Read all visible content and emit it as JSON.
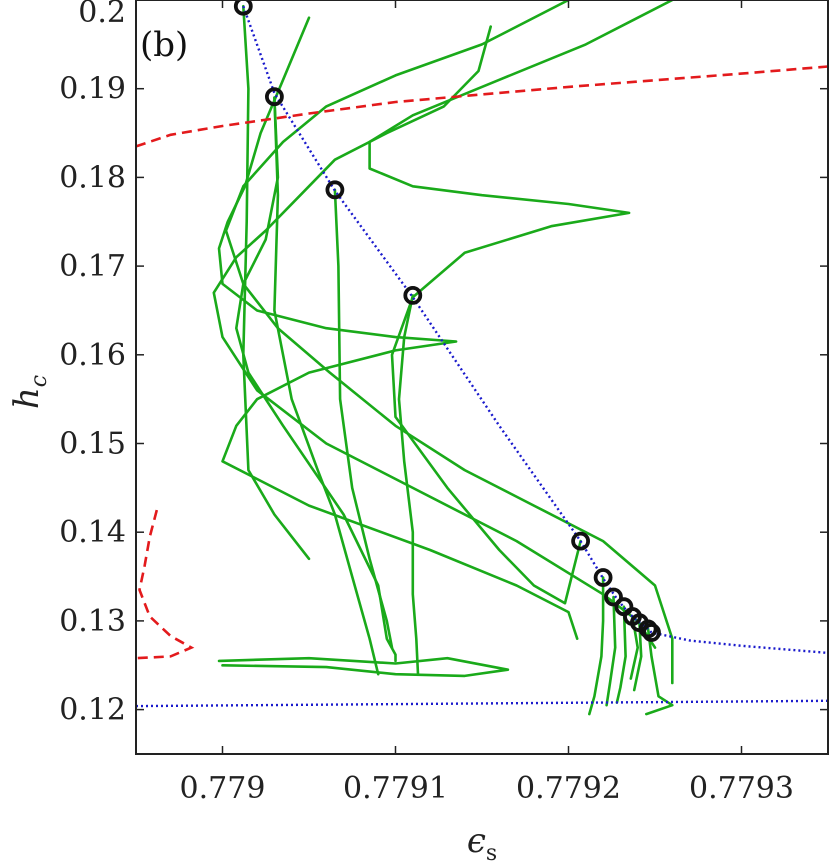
{
  "chart_data": {
    "type": "line",
    "panel_label": "(b)",
    "xlabel_base": "ϵ",
    "xlabel_sub": "s",
    "ylabel_base": "h",
    "ylabel_sub": "c",
    "xlim": [
      0.77895,
      0.77935
    ],
    "ylim": [
      0.115,
      0.2
    ],
    "xticks": [
      0.779,
      0.7791,
      0.7792,
      0.7793
    ],
    "xtick_labels": [
      "0.779",
      "0.7791",
      "0.7792",
      "0.7793"
    ],
    "yticks": [
      0.12,
      0.13,
      0.14,
      0.15,
      0.16,
      0.17,
      0.18,
      0.19,
      0.2
    ],
    "ytick_labels": [
      "0.12",
      "0.13",
      "0.14",
      "0.15",
      "0.16",
      "0.17",
      "0.18",
      "0.19",
      "0.2"
    ],
    "grid": false,
    "colors": {
      "blue_dotted": "#1a1acc",
      "red_dashed": "#e31a1c",
      "green": "#1aaa1a",
      "markers": "#111111"
    },
    "blue_upper": [
      [
        0.779012,
        0.1993
      ],
      [
        0.77903,
        0.1895
      ],
      [
        0.779065,
        0.1785
      ],
      [
        0.77911,
        0.1665
      ],
      [
        0.77916,
        0.152
      ],
      [
        0.779207,
        0.139
      ],
      [
        0.77922,
        0.1348
      ],
      [
        0.779228,
        0.1325
      ],
      [
        0.779233,
        0.1313
      ],
      [
        0.779238,
        0.1303
      ],
      [
        0.779242,
        0.1297
      ],
      [
        0.779246,
        0.1291
      ],
      [
        0.779248,
        0.1287
      ],
      [
        0.77927,
        0.1278
      ],
      [
        0.7793,
        0.1272
      ],
      [
        0.77935,
        0.1264
      ]
    ],
    "blue_lower": [
      [
        0.77895,
        0.1204
      ],
      [
        0.77935,
        0.121
      ]
    ],
    "red_upper": [
      [
        0.77895,
        0.1835
      ],
      [
        0.77897,
        0.1848
      ],
      [
        0.779,
        0.1858
      ],
      [
        0.77905,
        0.1872
      ],
      [
        0.7791,
        0.1885
      ],
      [
        0.7792,
        0.1902
      ],
      [
        0.7793,
        0.1917
      ],
      [
        0.77935,
        0.1925
      ]
    ],
    "red_lower": [
      [
        0.778962,
        0.1425
      ],
      [
        0.778958,
        0.1395
      ],
      [
        0.778955,
        0.1362
      ],
      [
        0.778952,
        0.1335
      ],
      [
        0.778958,
        0.1305
      ],
      [
        0.77897,
        0.1283
      ],
      [
        0.778982,
        0.127
      ],
      [
        0.77897,
        0.126
      ],
      [
        0.77895,
        0.1258
      ]
    ],
    "markers": [
      [
        0.779012,
        0.1993
      ],
      [
        0.77903,
        0.1891
      ],
      [
        0.779065,
        0.1786
      ],
      [
        0.77911,
        0.1667
      ],
      [
        0.779207,
        0.139
      ],
      [
        0.77922,
        0.1349
      ],
      [
        0.779226,
        0.1327
      ],
      [
        0.779232,
        0.1316
      ],
      [
        0.779237,
        0.1305
      ],
      [
        0.779241,
        0.1298
      ],
      [
        0.779246,
        0.1291
      ],
      [
        0.779248,
        0.1287
      ]
    ],
    "green_series": [
      {
        "points": [
          [
            0.779012,
            0.1993
          ],
          [
            0.779015,
            0.19
          ],
          [
            0.779014,
            0.175
          ],
          [
            0.779012,
            0.16
          ],
          [
            0.779015,
            0.147
          ],
          [
            0.77903,
            0.142
          ],
          [
            0.77904,
            0.1395
          ],
          [
            0.77905,
            0.137
          ]
        ]
      },
      {
        "points": [
          [
            0.77903,
            0.189
          ],
          [
            0.779032,
            0.18
          ],
          [
            0.779025,
            0.173
          ],
          [
            0.779012,
            0.168
          ],
          [
            0.779008,
            0.163
          ],
          [
            0.779015,
            0.158
          ],
          [
            0.779035,
            0.152
          ],
          [
            0.77907,
            0.142
          ],
          [
            0.77909,
            0.134
          ],
          [
            0.779095,
            0.128
          ],
          [
            0.7791,
            0.1262
          ],
          [
            0.7791,
            0.1255
          ]
        ]
      },
      {
        "points": [
          [
            0.77903,
            0.189
          ],
          [
            0.779032,
            0.178
          ],
          [
            0.77903,
            0.165
          ],
          [
            0.77904,
            0.155
          ],
          [
            0.779055,
            0.147
          ],
          [
            0.779065,
            0.142
          ],
          [
            0.779075,
            0.135
          ],
          [
            0.779085,
            0.128
          ],
          [
            0.77909,
            0.124
          ]
        ]
      },
      {
        "points": [
          [
            0.779065,
            0.1786
          ],
          [
            0.779067,
            0.17
          ],
          [
            0.779068,
            0.155
          ],
          [
            0.779075,
            0.145
          ],
          [
            0.779085,
            0.137
          ],
          [
            0.779095,
            0.13
          ],
          [
            0.779098,
            0.127
          ]
        ]
      },
      {
        "points": [
          [
            0.77911,
            0.1667
          ],
          [
            0.779105,
            0.162
          ],
          [
            0.779102,
            0.155
          ],
          [
            0.779105,
            0.148
          ],
          [
            0.77911,
            0.14
          ],
          [
            0.77911,
            0.133
          ],
          [
            0.779112,
            0.128
          ],
          [
            0.779113,
            0.124
          ]
        ]
      },
      {
        "points": [
          [
            0.77905,
            0.198
          ],
          [
            0.779035,
            0.191
          ],
          [
            0.779022,
            0.185
          ],
          [
            0.779013,
            0.179
          ],
          [
            0.779003,
            0.175
          ],
          [
            0.778998,
            0.172
          ],
          [
            0.779,
            0.168
          ],
          [
            0.77902,
            0.165
          ],
          [
            0.77906,
            0.163
          ],
          [
            0.7791,
            0.162
          ],
          [
            0.779135,
            0.1615
          ],
          [
            0.7791,
            0.1605
          ],
          [
            0.77905,
            0.158
          ],
          [
            0.77902,
            0.155
          ],
          [
            0.779008,
            0.152
          ],
          [
            0.779,
            0.148
          ],
          [
            0.77905,
            0.143
          ],
          [
            0.77912,
            0.138
          ],
          [
            0.77917,
            0.134
          ],
          [
            0.7792,
            0.131
          ],
          [
            0.779205,
            0.128
          ]
        ]
      },
      {
        "points": [
          [
            0.779155,
            0.197
          ],
          [
            0.779148,
            0.192
          ],
          [
            0.779128,
            0.188
          ],
          [
            0.779095,
            0.185
          ],
          [
            0.779065,
            0.182
          ],
          [
            0.779045,
            0.178
          ],
          [
            0.779025,
            0.174
          ],
          [
            0.779008,
            0.171
          ],
          [
            0.778995,
            0.167
          ],
          [
            0.779,
            0.162
          ],
          [
            0.77902,
            0.156
          ],
          [
            0.77906,
            0.15
          ],
          [
            0.77911,
            0.145
          ],
          [
            0.77917,
            0.139
          ],
          [
            0.77922,
            0.133
          ],
          [
            0.77924,
            0.13
          ],
          [
            0.77925,
            0.127
          ]
        ]
      },
      {
        "points": [
          [
            0.7792,
            0.2
          ],
          [
            0.77915,
            0.195
          ],
          [
            0.7791,
            0.1915
          ],
          [
            0.77906,
            0.188
          ],
          [
            0.779035,
            0.184
          ],
          [
            0.779012,
            0.179
          ],
          [
            0.779002,
            0.174
          ],
          [
            0.779012,
            0.168
          ],
          [
            0.779032,
            0.163
          ],
          [
            0.779062,
            0.158
          ],
          [
            0.7791,
            0.152
          ],
          [
            0.77914,
            0.147
          ],
          [
            0.77918,
            0.143
          ],
          [
            0.77922,
            0.139
          ],
          [
            0.77925,
            0.134
          ],
          [
            0.77926,
            0.128
          ],
          [
            0.77926,
            0.123
          ]
        ]
      },
      {
        "points": [
          [
            0.77926,
            0.2
          ],
          [
            0.77921,
            0.195
          ],
          [
            0.77916,
            0.191
          ],
          [
            0.77911,
            0.187
          ],
          [
            0.779085,
            0.184
          ],
          [
            0.779085,
            0.181
          ],
          [
            0.77911,
            0.179
          ],
          [
            0.77915,
            0.178
          ],
          [
            0.7792,
            0.177
          ],
          [
            0.779235,
            0.176
          ],
          [
            0.77919,
            0.1745
          ],
          [
            0.77914,
            0.1715
          ],
          [
            0.77911,
            0.1665
          ],
          [
            0.779098,
            0.16
          ],
          [
            0.7791,
            0.153
          ],
          [
            0.77913,
            0.145
          ],
          [
            0.77916,
            0.138
          ],
          [
            0.77918,
            0.134
          ],
          [
            0.779198,
            0.132
          ],
          [
            0.779207,
            0.139
          ]
        ]
      },
      {
        "points": [
          [
            0.778998,
            0.1255
          ],
          [
            0.77905,
            0.1258
          ],
          [
            0.7791,
            0.1252
          ],
          [
            0.77913,
            0.1258
          ],
          [
            0.779165,
            0.1245
          ],
          [
            0.77914,
            0.1238
          ],
          [
            0.7791,
            0.124
          ],
          [
            0.77906,
            0.1248
          ],
          [
            0.779,
            0.125
          ]
        ]
      },
      {
        "points": [
          [
            0.77922,
            0.1349
          ],
          [
            0.77922,
            0.13
          ],
          [
            0.779219,
            0.126
          ],
          [
            0.779215,
            0.1215
          ],
          [
            0.779212,
            0.1195
          ]
        ]
      },
      {
        "points": [
          [
            0.779226,
            0.1327
          ],
          [
            0.779227,
            0.127
          ],
          [
            0.779224,
            0.123
          ],
          [
            0.779222,
            0.1205
          ]
        ]
      },
      {
        "points": [
          [
            0.779232,
            0.1316
          ],
          [
            0.779233,
            0.126
          ],
          [
            0.77923,
            0.1225
          ],
          [
            0.779228,
            0.1208
          ]
        ]
      },
      {
        "points": [
          [
            0.779237,
            0.1305
          ],
          [
            0.77924,
            0.127
          ],
          [
            0.779236,
            0.1235
          ]
        ]
      },
      {
        "points": [
          [
            0.779241,
            0.1298
          ],
          [
            0.779242,
            0.126
          ],
          [
            0.779238,
            0.1222
          ]
        ]
      },
      {
        "points": [
          [
            0.779246,
            0.1291
          ],
          [
            0.779248,
            0.126
          ],
          [
            0.779252,
            0.1215
          ],
          [
            0.77926,
            0.1205
          ],
          [
            0.779245,
            0.1195
          ]
        ]
      }
    ]
  }
}
